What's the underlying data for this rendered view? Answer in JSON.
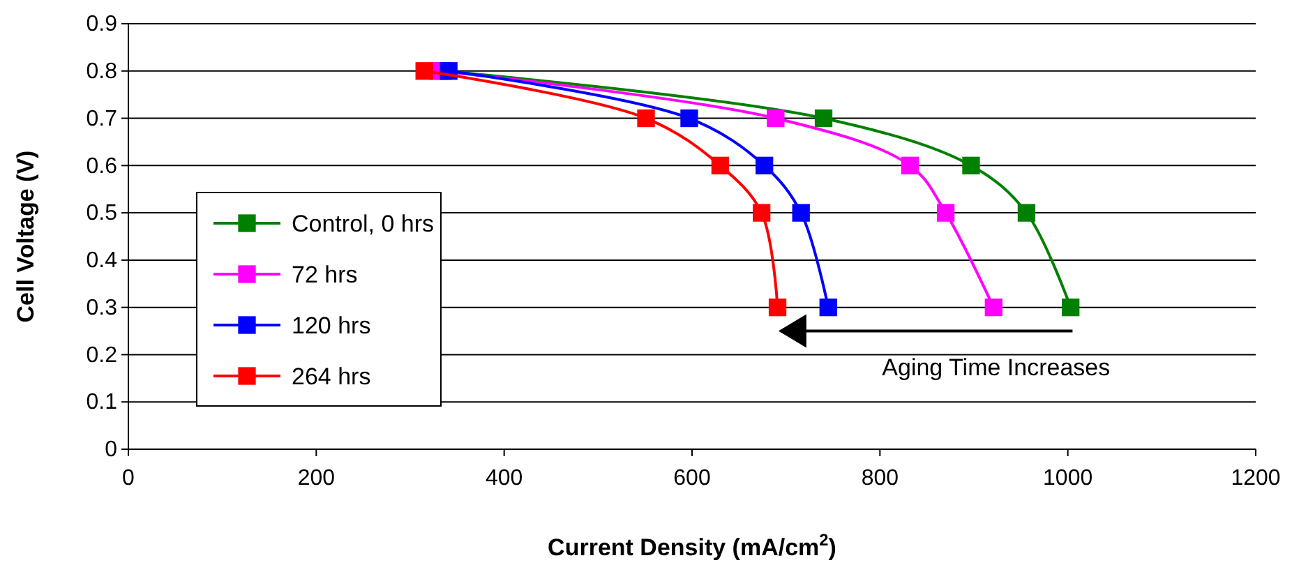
{
  "chart_data": {
    "type": "line",
    "xlabel": "Current Density (mA/cm$^{2}$)",
    "ylabel": "Cell Voltage (V)",
    "xlim": [
      0,
      1200
    ],
    "xticks": [
      0,
      200,
      400,
      600,
      800,
      1000,
      1200
    ],
    "ylim": [
      0,
      0.9
    ],
    "yticks": [
      0,
      0.1,
      0.2,
      0.3,
      0.4,
      0.5,
      0.6,
      0.7,
      0.8,
      0.9
    ],
    "grid": "y",
    "legend": "left",
    "marker": "square",
    "line_style": "solid",
    "annotations": [
      "Aging Time Increases"
    ],
    "series": [
      {
        "name": "Control, 0 hrs",
        "color": "#008000",
        "x": [
          335,
          740,
          897,
          956,
          1003
        ],
        "values": [
          0.8,
          0.7,
          0.6,
          0.5,
          0.3
        ]
      },
      {
        "name": "72 hrs",
        "color": "#ff00ff",
        "x": [
          330,
          689,
          832,
          870,
          921
        ],
        "values": [
          0.8,
          0.7,
          0.6,
          0.5,
          0.3
        ]
      },
      {
        "name": "120 hrs",
        "color": "#0000ff",
        "x": [
          341,
          597,
          677,
          716,
          745
        ],
        "values": [
          0.8,
          0.7,
          0.6,
          0.5,
          0.3
        ]
      },
      {
        "name": "264 hrs",
        "color": "#ff0000",
        "x": [
          315,
          551,
          630,
          674,
          691
        ],
        "values": [
          0.8,
          0.7,
          0.6,
          0.5,
          0.3
        ]
      }
    ]
  }
}
